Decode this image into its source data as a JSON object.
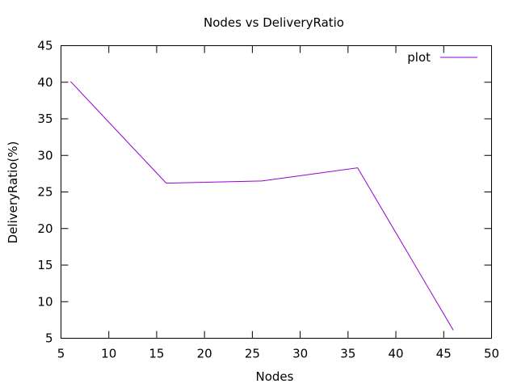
{
  "chart_data": {
    "type": "line",
    "title": "Nodes vs DeliveryRatio",
    "xlabel": "Nodes",
    "ylabel": "DeliveryRatio(%)",
    "xlim": [
      5,
      50
    ],
    "ylim": [
      5,
      45
    ],
    "xticks": [
      5,
      10,
      15,
      20,
      25,
      30,
      35,
      40,
      45,
      50
    ],
    "yticks": [
      5,
      10,
      15,
      20,
      25,
      30,
      35,
      40,
      45
    ],
    "grid": false,
    "legend_position": "top-right",
    "series": [
      {
        "name": "plot",
        "color": "#9400d3",
        "x": [
          6,
          16,
          26,
          36,
          46
        ],
        "y": [
          40.1,
          26.2,
          26.5,
          28.3,
          6.1
        ]
      }
    ]
  }
}
